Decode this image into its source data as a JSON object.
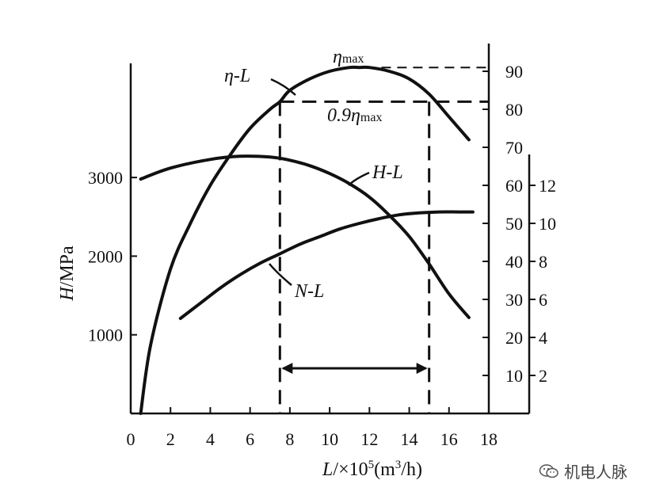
{
  "chart_data": {
    "type": "line",
    "xlabel": "L/×10⁵(m³/h)",
    "ylabel": "H/MPa",
    "x_ticks": [
      0,
      2,
      4,
      6,
      8,
      10,
      12,
      14,
      16,
      18
    ],
    "y_left_ticks": [
      1000,
      2000,
      3000
    ],
    "y_eta_ticks": [
      10,
      20,
      30,
      40,
      50,
      60,
      70,
      80,
      90
    ],
    "y_N_ticks": [
      2,
      4,
      6,
      8,
      10,
      12
    ],
    "xlim": [
      0,
      18
    ],
    "ylim_left": [
      0,
      3800
    ],
    "ylim_eta": [
      0,
      100
    ],
    "ylim_N": [
      0,
      15
    ],
    "series": [
      {
        "name": "η-L",
        "axis": "eta",
        "x": [
          0.5,
          1,
          2,
          3,
          4,
          5,
          6,
          7,
          7.5,
          8,
          9,
          10,
          11,
          11.5,
          12,
          13,
          14,
          15,
          16,
          17
        ],
        "y": [
          0,
          18,
          38,
          50,
          60,
          68,
          75,
          80,
          82,
          85,
          88,
          90,
          91,
          91,
          91,
          90,
          88,
          84,
          78,
          72
        ]
      },
      {
        "name": "H-L",
        "axis": "H",
        "x": [
          0.5,
          2,
          4,
          5.5,
          7,
          8,
          9,
          10,
          11,
          12,
          13,
          14,
          15,
          16,
          17
        ],
        "y": [
          2980,
          3120,
          3230,
          3270,
          3260,
          3220,
          3150,
          3050,
          2920,
          2750,
          2520,
          2250,
          1900,
          1520,
          1220
        ]
      },
      {
        "name": "N-L",
        "axis": "N",
        "x": [
          2.5,
          3.5,
          4.5,
          5.5,
          6.5,
          7.5,
          8.5,
          9.5,
          10.5,
          11.5,
          12.5,
          13.5,
          14.5,
          15.5,
          16.5,
          17.2
        ],
        "y": [
          5.0,
          5.8,
          6.6,
          7.3,
          7.9,
          8.4,
          8.9,
          9.3,
          9.7,
          10.0,
          10.25,
          10.45,
          10.55,
          10.6,
          10.6,
          10.6
        ]
      }
    ],
    "annotations": {
      "eta_max_label": "ηmax",
      "eta_09_label": "0.9ηmax",
      "eta_max_value": 91,
      "eta_09_value": 82,
      "range_start": 7.5,
      "range_end": 15
    }
  },
  "watermark": {
    "text": "机电人脉",
    "icon": "wechat-icon"
  }
}
